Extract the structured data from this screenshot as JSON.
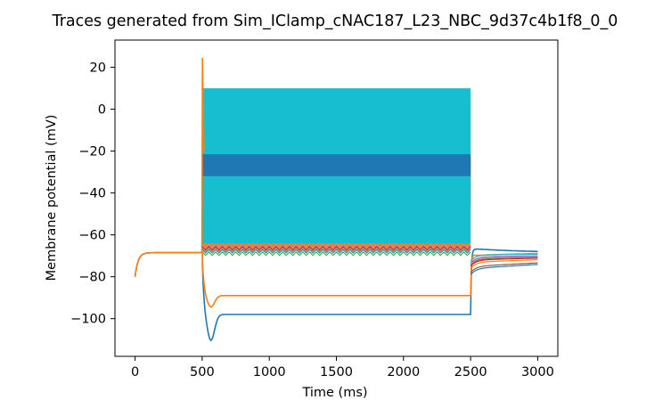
{
  "chart_data": {
    "type": "line",
    "title": "Traces generated from Sim_IClamp_cNAC187_L23_NBC_9d37c4b1f8_0_0",
    "xlabel": "Time (ms)",
    "ylabel": "Membrane potential (mV)",
    "xlim": [
      -150,
      3150
    ],
    "ylim": [
      -118,
      33
    ],
    "xticks": [
      0,
      500,
      1000,
      1500,
      2000,
      2500,
      3000
    ],
    "yticks": [
      -100,
      -80,
      -60,
      -40,
      -20,
      0,
      20
    ],
    "grid": false,
    "legend": "none",
    "colors": {
      "blue": "#1f77b4",
      "orange": "#ff7f0e",
      "green": "#2ca02c",
      "red": "#d62728",
      "purple": "#9467bd",
      "brown": "#8c564b",
      "pink": "#e377c2",
      "gray": "#7f7f7f",
      "olive": "#bcbd22",
      "cyan": "#17becf"
    },
    "stimulus": {
      "onset_ms": 500,
      "offset_ms": 2500,
      "end_ms": 3000
    },
    "resting_potential_mv": -68.5,
    "initial_potential_mv": -80,
    "series": [
      {
        "color": "blue",
        "kind": "hyperpolarizing",
        "min_mv": -110.5,
        "steady_mv": -98.0,
        "post_mv": -66.5
      },
      {
        "color": "orange",
        "kind": "hyperpolarizing",
        "min_mv": -94.5,
        "steady_mv": -89.0,
        "post_mv": -70.0
      },
      {
        "color": "orange",
        "kind": "spiking_band",
        "upper_mv": [
          8,
          8,
          8
        ],
        "lower_mv": [
          -66,
          -66,
          -66
        ],
        "peak_mv": 24.5
      },
      {
        "color": "green",
        "kind": "spiking_band",
        "upper_mv": [
          7,
          4,
          -10
        ],
        "lower_mv": [
          -62,
          -48,
          -42
        ],
        "decay_end_ms": 2500
      },
      {
        "color": "red",
        "kind": "spiking_band",
        "upper_mv": [
          6,
          2,
          -23
        ],
        "lower_mv": [
          -63,
          -52,
          -45
        ],
        "decay_end_ms": 1400
      },
      {
        "color": "brown",
        "kind": "spiking_band",
        "upper_mv": [
          6,
          0,
          -23
        ],
        "lower_mv": [
          -63,
          -50,
          -45
        ],
        "decay_end_ms": 1100
      },
      {
        "color": "purple",
        "kind": "spiking_band",
        "upper_mv": [
          4,
          -2,
          -23
        ],
        "lower_mv": [
          -62,
          -52,
          -46
        ],
        "decay_end_ms": 1050
      },
      {
        "color": "pink",
        "kind": "spiking_band",
        "upper_mv": [
          3,
          -2,
          -23
        ],
        "lower_mv": [
          -62,
          -52,
          -46
        ],
        "decay_end_ms": 900
      },
      {
        "color": "gray",
        "kind": "spiking_band",
        "upper_mv": [
          1,
          -5,
          -23
        ],
        "lower_mv": [
          -60,
          -52,
          -46
        ],
        "decay_end_ms": 700
      },
      {
        "color": "olive",
        "kind": "spiking_band",
        "upper_mv": [
          0,
          -8,
          -23
        ],
        "lower_mv": [
          -60,
          -52,
          -46
        ],
        "decay_end_ms": 620
      },
      {
        "color": "cyan",
        "kind": "spiking_band",
        "upper_mv": [
          10,
          10,
          10
        ],
        "lower_mv": [
          -64,
          -64,
          -64
        ]
      },
      {
        "color": "blue",
        "kind": "spiking_band",
        "upper_mv": [
          -21.5,
          -21.5,
          -21.5
        ],
        "lower_mv": [
          -32,
          -32,
          -32
        ]
      }
    ]
  }
}
